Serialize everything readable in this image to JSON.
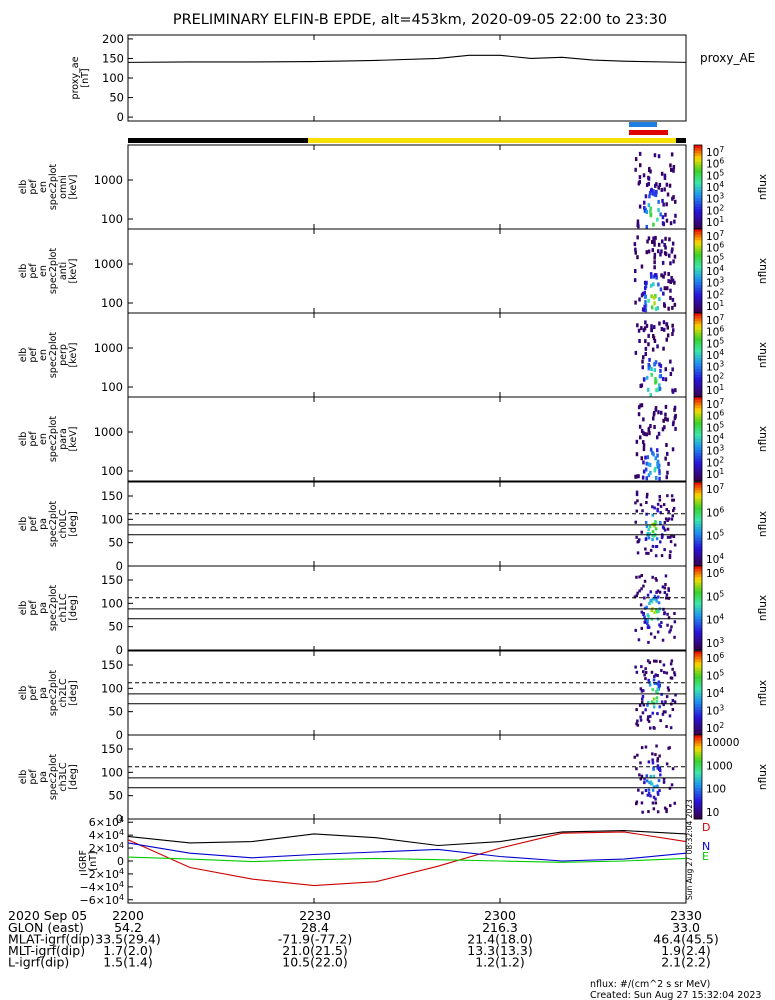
{
  "title": "PRELIMINARY ELFIN-B EPDE, alt=453km, 2020-09-05 22:00 to 23:30",
  "footer": {
    "units_note": "nflux: #/(cm^2 s sr MeV)",
    "created": "Created: Sun Aug 27 15:32:04 2023",
    "side_stamp": "Sun Aug 27 08:32:04 2023"
  },
  "x_axis": {
    "date_label": "2020 Sep 05",
    "tick_labels": [
      "2200",
      "2230",
      "2300",
      "2330"
    ],
    "tick_minutes": [
      0,
      30,
      60,
      90
    ]
  },
  "ephemeris": {
    "row_labels": [
      "GLON (east)",
      "MLAT-igrf(dip)",
      "MLT-igrf(dip)",
      "L-igrf(dip)"
    ],
    "rows": [
      [
        "54.2",
        "28.4",
        "216.3",
        "33.0"
      ],
      [
        "33.5(29.4)",
        "-71.9(-77.2)",
        "21.4(18.0)",
        "46.4(45.5)"
      ],
      [
        "1.7(2.0)",
        "21.0(21.5)",
        "13.3(13.3)",
        "1.9(2.4)"
      ],
      [
        "1.5(1.4)",
        "10.5(22.0)",
        "1.2(1.2)",
        "2.1(2.2)"
      ]
    ]
  },
  "colorbar_label": "nflux",
  "colors": {
    "day_bar": "#f5e000",
    "night_bar": "#000000",
    "sci_zone_blue": "#1e7fe0",
    "sci_zone_red": "#e00000",
    "igrf_D": "#cc0000",
    "igrf_N": "#0000cc",
    "igrf_E": "#00cc00"
  },
  "chart_data": [
    {
      "type": "line",
      "panel": "proxy_ae",
      "ylabel": "proxy_ae [nT]",
      "series_label": "proxy_AE",
      "ylim": [
        -10,
        210
      ],
      "yticks": [
        "0",
        "50",
        "100",
        "150",
        "200"
      ],
      "x_minutes": [
        0,
        10,
        20,
        30,
        40,
        50,
        55,
        60,
        65,
        70,
        75,
        80,
        90
      ],
      "values": [
        140,
        141,
        141,
        142,
        145,
        150,
        158,
        158,
        150,
        153,
        146,
        143,
        140
      ]
    },
    {
      "type": "heatmap",
      "panel": "spectrogram",
      "ylabel": "elb pef en spec2plot omni [keV]",
      "yticks": [
        "100",
        "1000"
      ],
      "colorbar_ticks": [
        "10^7",
        "10^6",
        "10^5",
        "10^4",
        "10^3",
        "10^2",
        "10^1"
      ],
      "active_interval_minutes": [
        82,
        87
      ]
    },
    {
      "type": "heatmap",
      "panel": "spectrogram",
      "ylabel": "elb pef en spec2plot anti [keV]",
      "yticks": [
        "100",
        "1000"
      ],
      "colorbar_ticks": [
        "10^7",
        "10^6",
        "10^5",
        "10^4",
        "10^3",
        "10^2",
        "10^1"
      ],
      "active_interval_minutes": [
        82,
        87
      ]
    },
    {
      "type": "heatmap",
      "panel": "spectrogram",
      "ylabel": "elb pef en spec2plot perp [keV]",
      "yticks": [
        "100",
        "1000"
      ],
      "colorbar_ticks": [
        "10^7",
        "10^6",
        "10^5",
        "10^4",
        "10^3",
        "10^2",
        "10^1"
      ],
      "active_interval_minutes": [
        82,
        87
      ]
    },
    {
      "type": "heatmap",
      "panel": "spectrogram",
      "ylabel": "elb pef en spec2plot para [keV]",
      "yticks": [
        "100",
        "1000"
      ],
      "colorbar_ticks": [
        "10^7",
        "10^6",
        "10^5",
        "10^4",
        "10^3",
        "10^2",
        "10^1"
      ],
      "active_interval_minutes": [
        82,
        87
      ]
    },
    {
      "type": "heatmap",
      "panel": "pitch-angle",
      "ylabel": "elb pef pa spec2plot ch0LC [deg]",
      "yticks": [
        "0",
        "50",
        "100",
        "150"
      ],
      "colorbar_ticks": [
        "10^7",
        "10^6",
        "10^5",
        "10^4"
      ],
      "lines_deg": [
        67,
        88,
        112
      ],
      "active_interval_minutes": [
        82,
        87
      ]
    },
    {
      "type": "heatmap",
      "panel": "pitch-angle",
      "ylabel": "elb pef pa spec2plot ch1LC [deg]",
      "yticks": [
        "0",
        "50",
        "100",
        "150"
      ],
      "colorbar_ticks": [
        "10^6",
        "10^5",
        "10^4",
        "10^3"
      ],
      "lines_deg": [
        67,
        88,
        112
      ],
      "active_interval_minutes": [
        82,
        87
      ]
    },
    {
      "type": "heatmap",
      "panel": "pitch-angle",
      "ylabel": "elb pef pa spec2plot ch2LC [deg]",
      "yticks": [
        "0",
        "50",
        "100",
        "150"
      ],
      "colorbar_ticks": [
        "10^6",
        "10^5",
        "10^4",
        "10^3",
        "10^2"
      ],
      "lines_deg": [
        67,
        88,
        112
      ],
      "active_interval_minutes": [
        82,
        87
      ]
    },
    {
      "type": "heatmap",
      "panel": "pitch-angle",
      "ylabel": "elb pef pa spec2plot ch3LC [deg]",
      "yticks": [
        "0",
        "50",
        "100",
        "150"
      ],
      "colorbar_ticks": [
        "10000",
        "1000",
        "100",
        "10"
      ],
      "lines_deg": [
        67,
        88,
        112
      ],
      "active_interval_minutes": [
        82,
        87
      ]
    },
    {
      "type": "line",
      "panel": "igrf",
      "ylabel": "IGRF [nT]",
      "ylim": [
        -65000,
        65000
      ],
      "yticks": [
        "6×10^4",
        "4×10^4",
        "2×10^4",
        "0",
        "−2×10^4",
        "−4×10^4",
        "−6×10^4"
      ],
      "x_minutes": [
        0,
        10,
        20,
        30,
        40,
        50,
        60,
        70,
        80,
        90
      ],
      "series": [
        {
          "name": "D",
          "values": [
            33000,
            -10000,
            -28000,
            -38000,
            -32000,
            -8000,
            20000,
            43000,
            45000,
            30000
          ]
        },
        {
          "name": "N",
          "values": [
            28000,
            12000,
            5000,
            10000,
            14000,
            18000,
            7000,
            0,
            3000,
            12000
          ]
        },
        {
          "name": "E",
          "values": [
            6000,
            3000,
            -1000,
            2000,
            4000,
            2000,
            0,
            -2000,
            0,
            4000
          ]
        },
        {
          "name": "",
          "values": [
            38000,
            28000,
            30000,
            42000,
            36000,
            24000,
            30000,
            45000,
            47000,
            42000
          ]
        }
      ]
    }
  ]
}
